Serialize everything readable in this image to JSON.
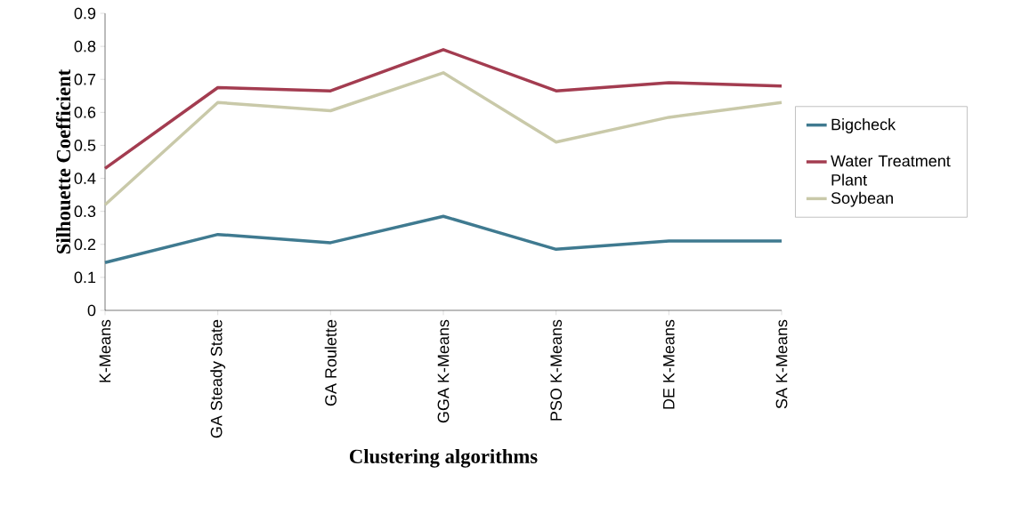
{
  "chart_data": {
    "type": "line",
    "xlabel": "Clustering algorithms",
    "ylabel": "Silhouette Coefficient",
    "categories": [
      "K-Means",
      "GA Steady State",
      "GA Roulette",
      "GGA K-Means",
      "PSO K-Means",
      "DE K-Means",
      "SA K-Means"
    ],
    "series": [
      {
        "name": "Bigcheck",
        "color": "#3f7a90",
        "values": [
          0.145,
          0.23,
          0.205,
          0.285,
          0.185,
          0.21,
          0.21
        ]
      },
      {
        "name": "Water Treatment Plant",
        "color": "#a33c50",
        "values": [
          0.43,
          0.675,
          0.665,
          0.79,
          0.665,
          0.69,
          0.68
        ]
      },
      {
        "name": "Soybean",
        "color": "#c9c9a9",
        "values": [
          0.32,
          0.63,
          0.605,
          0.72,
          0.51,
          0.585,
          0.63
        ]
      }
    ],
    "ylim": [
      0,
      0.9
    ],
    "yticks": [
      0,
      0.1,
      0.2,
      0.3,
      0.4,
      0.5,
      0.6,
      0.7,
      0.8,
      0.9
    ],
    "grid": false,
    "legend": "right",
    "marker": "none",
    "line_style": "solid"
  }
}
